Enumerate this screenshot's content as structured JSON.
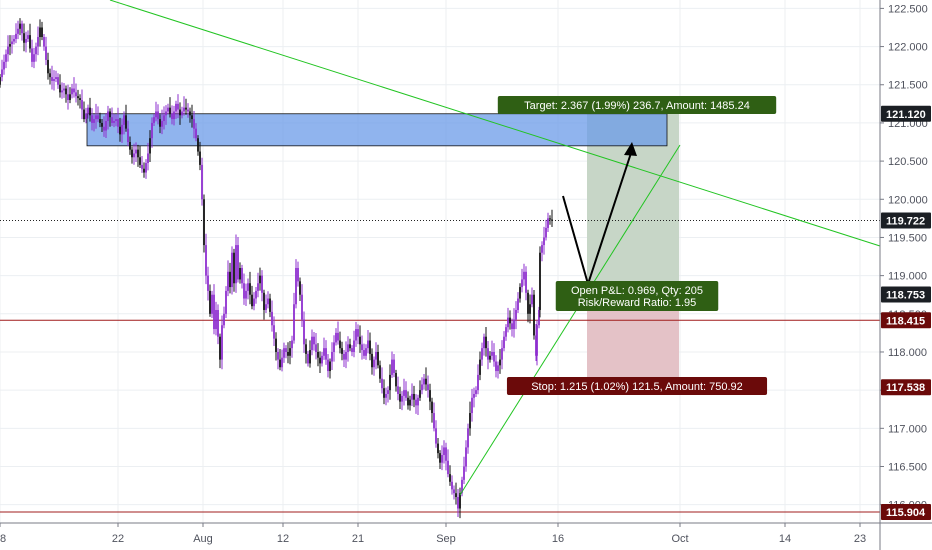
{
  "chart_data": {
    "type": "candlestick",
    "grid": true,
    "x_ticks": [
      "8",
      "22",
      "Aug",
      "12",
      "21",
      "Sep",
      "16",
      "Oct",
      "14",
      "23"
    ],
    "y_ticks": [
      "116.000",
      "116.500",
      "117.000",
      "117.500",
      "118.000",
      "118.500",
      "119.000",
      "119.500",
      "120.000",
      "120.500",
      "121.000",
      "121.500",
      "122.000",
      "122.500"
    ],
    "ylim": [
      115.76,
      122.61
    ],
    "price_series": [
      [
        0,
        121.5
      ],
      [
        6,
        121.8
      ],
      [
        10,
        122.0
      ],
      [
        16,
        122.1
      ],
      [
        22,
        122.3
      ],
      [
        26,
        122.05
      ],
      [
        30,
        122.15
      ],
      [
        34,
        121.8
      ],
      [
        38,
        122.0
      ],
      [
        42,
        122.25
      ],
      [
        46,
        122.0
      ],
      [
        50,
        121.65
      ],
      [
        54,
        121.55
      ],
      [
        58,
        121.6
      ],
      [
        62,
        121.4
      ],
      [
        66,
        121.45
      ],
      [
        70,
        121.3
      ],
      [
        74,
        121.45
      ],
      [
        78,
        121.35
      ],
      [
        82,
        121.3
      ],
      [
        86,
        121.05
      ],
      [
        90,
        121.2
      ],
      [
        94,
        121.0
      ],
      [
        98,
        121.1
      ],
      [
        102,
        121.0
      ],
      [
        106,
        120.9
      ],
      [
        110,
        121.15
      ],
      [
        114,
        121.0
      ],
      [
        118,
        121.05
      ],
      [
        122,
        120.85
      ],
      [
        126,
        121.1
      ],
      [
        130,
        120.75
      ],
      [
        134,
        120.55
      ],
      [
        138,
        120.65
      ],
      [
        142,
        120.45
      ],
      [
        146,
        120.35
      ],
      [
        150,
        120.6
      ],
      [
        154,
        121.0
      ],
      [
        158,
        121.15
      ],
      [
        162,
        120.95
      ],
      [
        166,
        121.1
      ],
      [
        170,
        121.2
      ],
      [
        174,
        121.05
      ],
      [
        178,
        121.25
      ],
      [
        182,
        121.1
      ],
      [
        186,
        121.2
      ],
      [
        190,
        121.15
      ],
      [
        194,
        121.05
      ],
      [
        198,
        120.8
      ],
      [
        202,
        120.45
      ],
      [
        204,
        120.0
      ],
      [
        206,
        119.4
      ],
      [
        208,
        119.0
      ],
      [
        210,
        118.8
      ],
      [
        212,
        118.5
      ],
      [
        214,
        118.75
      ],
      [
        216,
        118.3
      ],
      [
        218,
        118.55
      ],
      [
        220,
        118.2
      ],
      [
        222,
        117.9
      ],
      [
        224,
        118.35
      ],
      [
        226,
        118.5
      ],
      [
        228,
        118.8
      ],
      [
        230,
        119.05
      ],
      [
        232,
        118.85
      ],
      [
        234,
        119.3
      ],
      [
        236,
        118.9
      ],
      [
        238,
        119.4
      ],
      [
        240,
        118.95
      ],
      [
        242,
        119.1
      ],
      [
        246,
        118.7
      ],
      [
        250,
        118.9
      ],
      [
        254,
        118.6
      ],
      [
        258,
        118.8
      ],
      [
        262,
        119.0
      ],
      [
        266,
        118.55
      ],
      [
        270,
        118.7
      ],
      [
        274,
        118.35
      ],
      [
        278,
        118.0
      ],
      [
        282,
        117.8
      ],
      [
        286,
        118.05
      ],
      [
        290,
        117.95
      ],
      [
        294,
        118.15
      ],
      [
        298,
        119.1
      ],
      [
        302,
        118.75
      ],
      [
        306,
        118.1
      ],
      [
        310,
        117.85
      ],
      [
        314,
        118.2
      ],
      [
        318,
        118.0
      ],
      [
        322,
        117.85
      ],
      [
        326,
        118.05
      ],
      [
        330,
        117.75
      ],
      [
        334,
        118.0
      ],
      [
        338,
        118.25
      ],
      [
        342,
        118.05
      ],
      [
        346,
        117.9
      ],
      [
        350,
        118.1
      ],
      [
        354,
        118.0
      ],
      [
        358,
        118.3
      ],
      [
        362,
        118.1
      ],
      [
        366,
        117.95
      ],
      [
        370,
        118.15
      ],
      [
        374,
        117.8
      ],
      [
        378,
        118.0
      ],
      [
        382,
        117.65
      ],
      [
        386,
        117.4
      ],
      [
        390,
        117.5
      ],
      [
        394,
        117.9
      ],
      [
        398,
        117.55
      ],
      [
        402,
        117.35
      ],
      [
        406,
        117.5
      ],
      [
        410,
        117.3
      ],
      [
        414,
        117.45
      ],
      [
        418,
        117.3
      ],
      [
        422,
        117.5
      ],
      [
        426,
        117.65
      ],
      [
        430,
        117.5
      ],
      [
        434,
        117.2
      ],
      [
        438,
        116.8
      ],
      [
        442,
        116.55
      ],
      [
        446,
        116.75
      ],
      [
        450,
        116.4
      ],
      [
        454,
        116.2
      ],
      [
        458,
        116.1
      ],
      [
        460,
        115.95
      ],
      [
        462,
        116.15
      ],
      [
        466,
        116.5
      ],
      [
        470,
        117.0
      ],
      [
        474,
        117.4
      ],
      [
        478,
        117.5
      ],
      [
        482,
        117.9
      ],
      [
        486,
        118.2
      ],
      [
        490,
        117.9
      ],
      [
        494,
        118.0
      ],
      [
        498,
        117.75
      ],
      [
        502,
        117.9
      ],
      [
        506,
        118.2
      ],
      [
        510,
        118.45
      ],
      [
        514,
        118.3
      ],
      [
        518,
        118.55
      ],
      [
        522,
        118.85
      ],
      [
        526,
        119.05
      ],
      [
        530,
        118.5
      ],
      [
        534,
        118.75
      ],
      [
        537,
        117.95
      ],
      [
        540,
        118.55
      ],
      [
        542,
        119.3
      ],
      [
        546,
        119.5
      ],
      [
        550,
        119.75
      ],
      [
        554,
        119.72
      ]
    ],
    "current_price": "119.722",
    "price_labels": [
      {
        "text": "121.120",
        "value": 121.12,
        "color": "#1b1f24"
      },
      {
        "text": "119.722",
        "value": 119.722,
        "color": "#1b1f24"
      },
      {
        "text": "118.753",
        "value": 118.753,
        "color": "#1b1f24"
      },
      {
        "text": "118.415",
        "value": 118.415,
        "color": "#6b0a0a"
      },
      {
        "text": "117.538",
        "value": 117.538,
        "color": "#6b0a0a"
      },
      {
        "text": "115.904",
        "value": 115.904,
        "color": "#6b0a0a"
      }
    ],
    "horizontal_lines": [
      {
        "value": 118.415,
        "color": "#a01c1c"
      },
      {
        "value": 115.904,
        "color": "#a01c1c"
      }
    ],
    "zone": {
      "low": 120.7,
      "high": 121.12,
      "color": "#6b9be8"
    },
    "long_position": {
      "entry": 118.753,
      "target": 121.12,
      "stop": 117.538,
      "target_label": "Target: 2.367 (1.99%) 236.7, Amount: 1485.24",
      "stop_label": "Stop: 1.215 (1.02%) 121.5, Amount: 750.92",
      "center_label_1": "Open P&L: 0.969, Qty: 205",
      "center_label_2": "Risk/Reward Ratio: 1.95"
    },
    "colors": {
      "candle": "#8e2fcf",
      "candle_dark": "#111111",
      "trendline": "#22c422",
      "profit_zone": "#c7d6c7",
      "loss_zone": "#e4c2c7",
      "target_box": "#2f5f14",
      "stop_box": "#6b0a0a"
    }
  }
}
